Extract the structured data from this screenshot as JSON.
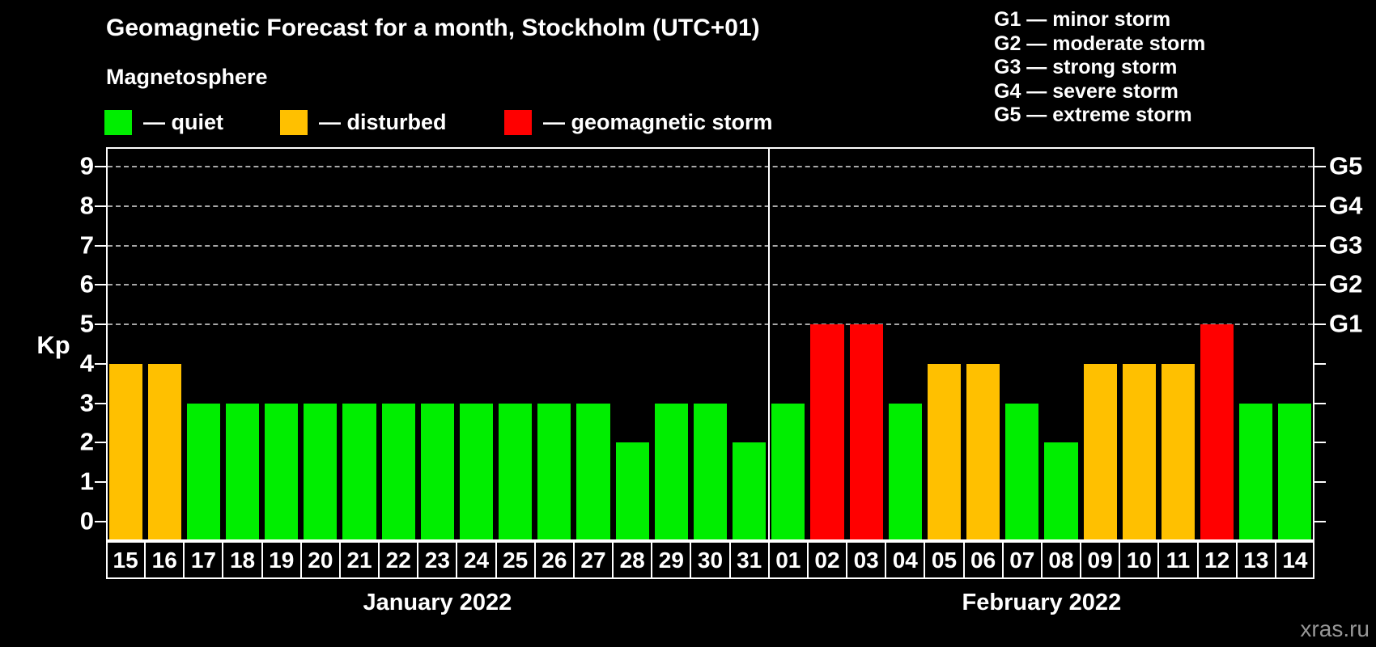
{
  "title": "Geomagnetic Forecast for a month, Stockholm (UTC+01)",
  "subtitle": "Magnetosphere",
  "watermark": "xras.ru",
  "legend": {
    "items": [
      {
        "id": "quiet",
        "label": "— quiet",
        "color": "#00ee00",
        "x": 129
      },
      {
        "id": "disturbed",
        "label": "— disturbed",
        "color": "#ffc000",
        "x": 346
      },
      {
        "id": "storm",
        "label": "— geomagnetic storm",
        "color": "#ff0000",
        "x": 623
      }
    ]
  },
  "g_legend": [
    "G1 — minor storm",
    "G2 — moderate storm",
    "G3 — strong storm",
    "G4 — severe storm",
    "G5 — extreme storm"
  ],
  "chart_data": {
    "type": "bar",
    "title": "Geomagnetic Forecast for a month, Stockholm (UTC+01)",
    "ylabel": "Kp",
    "ylim": [
      -0.5,
      9.5
    ],
    "yticks": [
      0,
      1,
      2,
      3,
      4,
      5,
      6,
      7,
      8,
      9
    ],
    "gridlines_at": [
      5,
      6,
      7,
      8,
      9
    ],
    "right_axis": [
      {
        "value": 5,
        "label": "G1"
      },
      {
        "value": 6,
        "label": "G2"
      },
      {
        "value": 7,
        "label": "G3"
      },
      {
        "value": 8,
        "label": "G4"
      },
      {
        "value": 9,
        "label": "G5"
      }
    ],
    "months": [
      {
        "label": "January 2022",
        "days": 17
      },
      {
        "label": "February 2022",
        "days": 14
      }
    ],
    "categories": [
      "15",
      "16",
      "17",
      "18",
      "19",
      "20",
      "21",
      "22",
      "23",
      "24",
      "25",
      "26",
      "27",
      "28",
      "29",
      "30",
      "31",
      "01",
      "02",
      "03",
      "04",
      "05",
      "06",
      "07",
      "08",
      "09",
      "10",
      "11",
      "12",
      "13",
      "14"
    ],
    "values": [
      4,
      4,
      3,
      3,
      3,
      3,
      3,
      3,
      3,
      3,
      3,
      3,
      3,
      2,
      3,
      3,
      2,
      3,
      5,
      5,
      3,
      4,
      4,
      3,
      2,
      4,
      4,
      4,
      5,
      3,
      3
    ],
    "states": [
      "disturbed",
      "disturbed",
      "quiet",
      "quiet",
      "quiet",
      "quiet",
      "quiet",
      "quiet",
      "quiet",
      "quiet",
      "quiet",
      "quiet",
      "quiet",
      "quiet",
      "quiet",
      "quiet",
      "quiet",
      "quiet",
      "storm",
      "storm",
      "quiet",
      "disturbed",
      "disturbed",
      "quiet",
      "quiet",
      "disturbed",
      "disturbed",
      "disturbed",
      "storm",
      "quiet",
      "quiet"
    ],
    "colors": {
      "quiet": "#00ee00",
      "disturbed": "#ffc000",
      "storm": "#ff0000"
    },
    "grid_color": "#a8a8a8",
    "legend_note": "quiet: Kp 2-3 green, disturbed: Kp 4 orange, storm: Kp 5 red"
  }
}
